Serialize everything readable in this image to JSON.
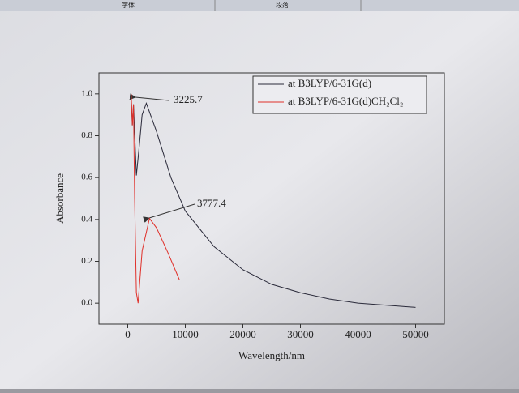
{
  "toolbar": {
    "tabs": [
      "字体",
      "段落"
    ]
  },
  "chart_data": {
    "type": "line",
    "x_label": "Wavelength/nm",
    "y_label": "Absorbance",
    "xlim": [
      -5000,
      55000
    ],
    "xticks": [
      0,
      10000,
      20000,
      30000,
      40000,
      50000
    ],
    "ylim": [
      -0.1,
      1.1
    ],
    "yticks": [
      {
        "value": 0,
        "label": "0.0"
      },
      0.2,
      0.4,
      0.6,
      0.8,
      {
        "value": 1,
        "label": "1.0"
      }
    ],
    "legend": "top-right",
    "series": [
      {
        "name": "at B3LYP/6-31G(d)",
        "color": "#2a2a3a",
        "x": [
          600,
          800,
          1000,
          1500,
          2000,
          2500,
          3225.7,
          5000,
          7500,
          10000,
          15000,
          20000,
          25000,
          30000,
          35000,
          40000,
          45000,
          50000
        ],
        "values": [
          0.98,
          0.85,
          0.95,
          0.61,
          0.75,
          0.9,
          0.955,
          0.82,
          0.6,
          0.44,
          0.27,
          0.16,
          0.09,
          0.05,
          0.02,
          0.0,
          -0.01,
          -0.02
        ]
      },
      {
        "name": "at B3LYP/6-31G(d)CH₂Cl₂",
        "color": "#e0302a",
        "x": [
          600,
          800,
          1000,
          1200,
          1500,
          1800,
          2500,
          3777.4,
          5000,
          7000,
          9000
        ],
        "values": [
          1.0,
          0.85,
          0.95,
          0.5,
          0.05,
          0.0,
          0.25,
          0.405,
          0.36,
          0.24,
          0.11
        ]
      }
    ],
    "annotations": [
      "3225.7",
      "3777.4"
    ]
  }
}
